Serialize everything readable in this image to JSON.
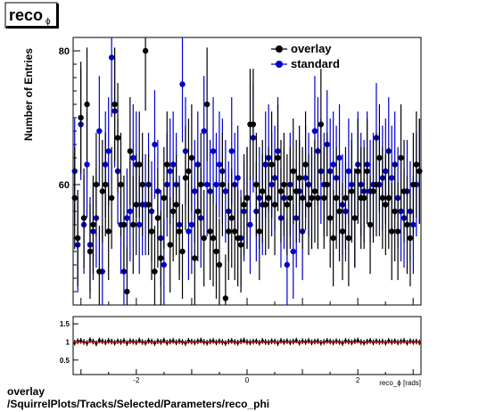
{
  "title_main": "reco",
  "title_sub": "ϕ",
  "footer": {
    "line1": "overlay",
    "line2": "/SquirrelPlots/Tracks/Selected/Parameters/reco_phi"
  },
  "colors": {
    "overlay": "#000000",
    "standard": "#0000cc",
    "ratio_line": "#cc0000"
  },
  "chart_data": [
    {
      "type": "scatter",
      "title": "",
      "xlabel": "",
      "ylabel": "Number of Entries",
      "xlim": [
        -3.1416,
        3.1416
      ],
      "ylim": [
        42,
        82
      ],
      "yticks": [
        60,
        80
      ],
      "legend_position": "top-right",
      "grid": false,
      "series": [
        {
          "name": "overlay",
          "marker": "circle",
          "values": [
            58,
            52,
            70,
            55,
            72,
            50,
            54,
            60,
            47,
            59,
            60,
            53,
            58,
            72,
            67,
            60,
            54,
            44,
            65,
            54,
            57,
            63,
            60,
            80,
            57,
            53,
            47,
            55,
            49,
            58,
            63,
            51,
            56,
            57,
            53,
            50,
            61,
            62,
            64,
            49,
            56,
            60,
            52,
            72,
            53,
            52,
            50,
            48,
            60,
            43,
            53,
            55,
            53,
            52,
            51,
            57,
            58,
            69,
            69,
            60,
            53,
            59,
            57,
            58,
            63,
            57,
            64,
            59,
            60,
            57,
            58,
            62,
            59,
            61,
            58,
            63,
            57,
            58,
            59,
            58,
            69,
            58,
            60,
            55,
            52,
            58,
            56,
            53,
            58,
            52,
            59,
            55,
            62,
            58,
            58,
            62,
            54,
            59,
            60,
            64,
            58,
            57,
            58,
            53,
            56,
            53,
            64,
            59,
            54,
            52,
            60,
            63,
            62
          ]
        },
        {
          "name": "standard",
          "marker": "circle",
          "values": [
            62,
            51,
            69,
            54,
            63,
            51,
            53,
            55,
            68,
            47,
            63,
            65,
            79,
            71,
            62,
            54,
            47,
            55,
            56,
            64,
            63,
            54,
            57,
            57,
            60,
            56,
            66,
            59,
            52,
            48,
            60,
            62,
            63,
            60,
            54,
            75,
            65,
            53,
            54,
            59,
            63,
            55,
            68,
            60,
            59,
            65,
            60,
            63,
            62,
            59,
            56,
            65,
            60,
            61,
            52,
            56,
            58,
            54,
            67,
            56,
            58,
            57,
            63,
            64,
            60,
            61,
            65,
            55,
            58,
            48,
            60,
            50,
            55,
            59,
            53,
            61,
            60,
            58,
            68,
            65,
            62,
            60,
            66,
            62,
            63,
            61,
            64,
            57,
            56,
            62,
            60,
            55,
            63,
            60,
            59,
            63,
            59,
            60,
            67,
            60,
            61,
            62,
            65,
            61,
            63,
            58,
            56,
            55,
            59,
            56,
            54,
            60,
            62
          ]
        }
      ]
    },
    {
      "type": "scatter",
      "title": "",
      "xlabel": "reco_ϕ [rads]",
      "ylabel": "",
      "xlim": [
        -3.1416,
        3.1416
      ],
      "ylim": [
        0.1,
        1.7
      ],
      "xticks": [
        -2,
        0,
        2
      ],
      "yticks": [
        0.5,
        1,
        1.5
      ],
      "reference_line": 1,
      "series": [
        {
          "name": "",
          "values": [
            0.98,
            1.02,
            1.03,
            1.0,
            0.97,
            1.05,
            1.01,
            0.96,
            1.04,
            1.02,
            0.99,
            1.03,
            1.01,
            0.98,
            1.02,
            1.0,
            1.03,
            0.97,
            1.02,
            1.01,
            0.99,
            1.04,
            1.0,
            0.98,
            1.03,
            1.01,
            0.97,
            1.02,
            1.0,
            1.04,
            0.98,
            1.01,
            1.03,
            0.99,
            1.02,
            1.0,
            0.97,
            1.03,
            1.01,
            0.99,
            1.02,
            1.04,
            1.0,
            0.98,
            1.01,
            1.03,
            0.99,
            1.02,
            1.0,
            0.97,
            1.01,
            1.03,
            1.0,
            0.98,
            1.02,
            1.04,
            1.0,
            0.99,
            1.01,
            1.02,
            0.98,
            1.03,
            1.0,
            0.99,
            1.02,
            1.01,
            0.97,
            1.03,
            1.0,
            1.02,
            0.99,
            1.01,
            1.04,
            0.98,
            1.02,
            1.0,
            1.03,
            0.99,
            1.01,
            1.02,
            0.98,
            1.0,
            1.03,
            1.01,
            0.99,
            1.02,
            1.0,
            0.97,
            1.03,
            1.01,
            0.99,
            1.02,
            1.04,
            1.0,
            0.98,
            1.01,
            1.03,
            0.99,
            1.02,
            1.0,
            1.01,
            0.98,
            1.03,
            1.0,
            1.02,
            0.99,
            1.01,
            1.03,
            0.98,
            1.02,
            1.0,
            1.01,
            0.99
          ]
        }
      ]
    }
  ]
}
